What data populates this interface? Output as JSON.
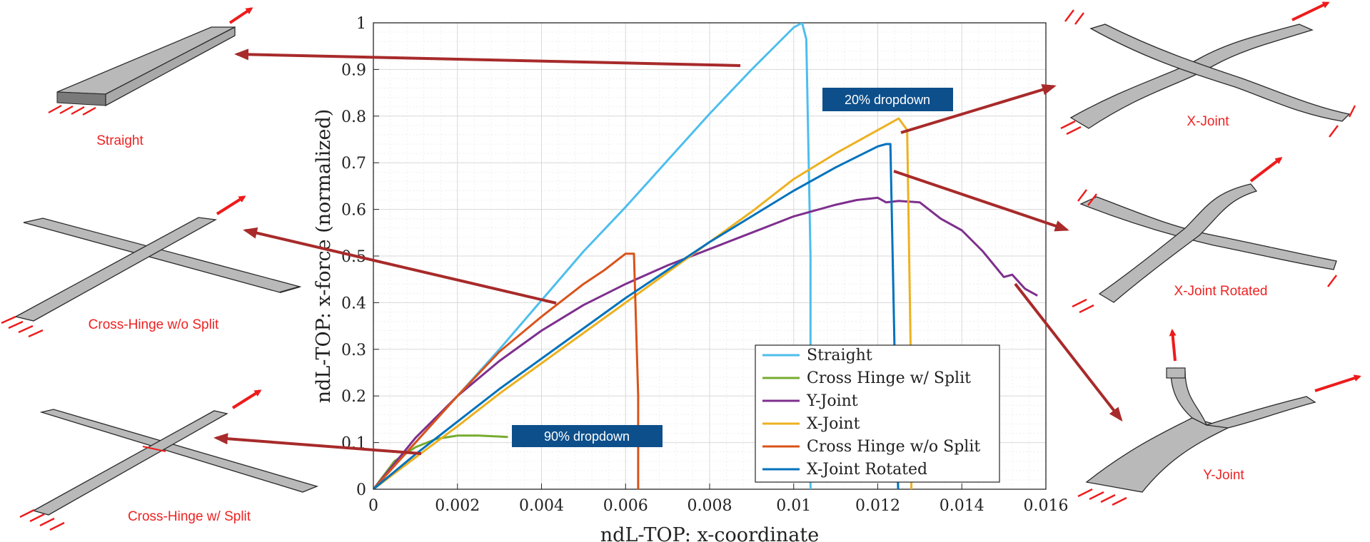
{
  "chart_data": {
    "type": "line",
    "xlabel": "ndL-TOP: x-coordinate",
    "ylabel": "ndL-TOP: x-force (normalized)",
    "xlim": [
      0,
      0.016
    ],
    "ylim": [
      0,
      1
    ],
    "x_ticks": [
      "0",
      "0.002",
      "0.004",
      "0.006",
      "0.008",
      "0.01",
      "0.012",
      "0.014",
      "0.016"
    ],
    "y_ticks": [
      "0",
      "0.1",
      "0.2",
      "0.3",
      "0.4",
      "0.5",
      "0.6",
      "0.7",
      "0.8",
      "0.9",
      "1"
    ],
    "grid": true,
    "legend_position": "bottom-right",
    "series": [
      {
        "name": "Straight",
        "color": "#4dbeee",
        "x": [
          0,
          0.001,
          0.002,
          0.003,
          0.004,
          0.005,
          0.006,
          0.007,
          0.008,
          0.009,
          0.0095,
          0.01,
          0.0102,
          0.0103,
          0.0104,
          0.0104
        ],
        "y": [
          0,
          0.1,
          0.2,
          0.3,
          0.405,
          0.51,
          0.605,
          0.705,
          0.805,
          0.9,
          0.945,
          0.99,
          1.0,
          0.965,
          0.5,
          -0.05
        ]
      },
      {
        "name": "Cross Hinge w/ Split",
        "color": "#77ac30",
        "x": [
          0,
          0.0005,
          0.001,
          0.0015,
          0.002,
          0.0025,
          0.003,
          0.0032
        ],
        "y": [
          0,
          0.06,
          0.09,
          0.108,
          0.115,
          0.115,
          0.113,
          0.112
        ]
      },
      {
        "name": "Y-Joint",
        "color": "#7e2f8e",
        "x": [
          0,
          0.001,
          0.002,
          0.003,
          0.004,
          0.005,
          0.006,
          0.007,
          0.008,
          0.009,
          0.01,
          0.011,
          0.0115,
          0.012,
          0.0122,
          0.0125,
          0.013,
          0.0135,
          0.014,
          0.0145,
          0.015,
          0.0152,
          0.0155,
          0.0158
        ],
        "y": [
          0,
          0.11,
          0.2,
          0.275,
          0.34,
          0.395,
          0.44,
          0.48,
          0.515,
          0.55,
          0.585,
          0.61,
          0.62,
          0.625,
          0.615,
          0.618,
          0.615,
          0.58,
          0.555,
          0.51,
          0.455,
          0.46,
          0.43,
          0.415
        ]
      },
      {
        "name": "X-Joint",
        "color": "#edb120",
        "x": [
          0,
          0.001,
          0.002,
          0.003,
          0.004,
          0.005,
          0.006,
          0.007,
          0.008,
          0.009,
          0.01,
          0.011,
          0.012,
          0.0125,
          0.0127,
          0.0128,
          0.0128
        ],
        "y": [
          0,
          0.068,
          0.135,
          0.205,
          0.27,
          0.335,
          0.4,
          0.465,
          0.53,
          0.595,
          0.665,
          0.72,
          0.77,
          0.795,
          0.77,
          0.2,
          -0.05
        ]
      },
      {
        "name": "Cross Hinge w/o Split",
        "color": "#d95319",
        "x": [
          0,
          0.001,
          0.002,
          0.003,
          0.004,
          0.005,
          0.0055,
          0.006,
          0.0062,
          0.0063,
          0.0063
        ],
        "y": [
          0,
          0.1,
          0.2,
          0.295,
          0.37,
          0.44,
          0.47,
          0.505,
          0.505,
          0.2,
          -0.05
        ]
      },
      {
        "name": "X-Joint Rotated",
        "color": "#0072bd",
        "x": [
          0,
          0.001,
          0.002,
          0.003,
          0.004,
          0.005,
          0.006,
          0.007,
          0.008,
          0.009,
          0.01,
          0.011,
          0.012,
          0.0122,
          0.0123,
          0.0124,
          0.0125
        ],
        "y": [
          0,
          0.075,
          0.145,
          0.215,
          0.28,
          0.345,
          0.41,
          0.47,
          0.53,
          0.585,
          0.64,
          0.69,
          0.735,
          0.74,
          0.74,
          0.3,
          -0.05
        ]
      }
    ]
  },
  "annotations": {
    "callout_20": "20% dropdown",
    "callout_90": "90% dropdown",
    "callout_color": "#0d4f8b",
    "pointer_color": "#a82a2a",
    "label_color": "#ee2222"
  },
  "part_labels": {
    "straight": "Straight",
    "cross_wo": "Cross-Hinge w/o Split",
    "cross_w": "Cross-Hinge w/ Split",
    "x_joint": "X-Joint",
    "x_joint_rot": "X-Joint Rotated",
    "y_joint": "Y-Joint"
  }
}
